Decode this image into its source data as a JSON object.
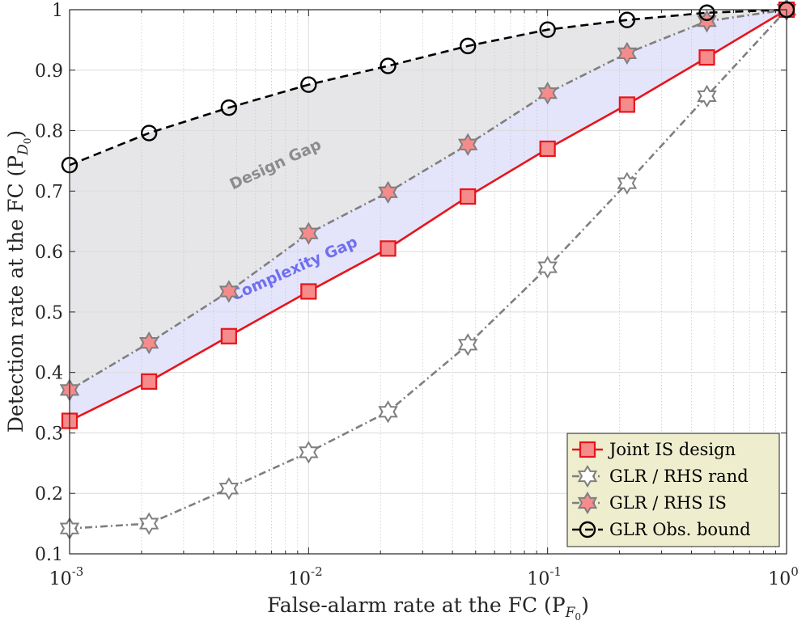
{
  "chart_data": {
    "type": "line",
    "xscale": "log",
    "xlabel": "False-alarm rate at the FC (P",
    "xlabel_sub": "F",
    "xlabel_subsub": "0",
    "xlabel_close": ")",
    "ylabel": "Detection rate at the FC (P",
    "ylabel_sub": "D",
    "ylabel_subsub": "0",
    "ylabel_close": ")",
    "xlim_log10": [
      -3,
      0
    ],
    "ylim": [
      0.1,
      1
    ],
    "x_ticks": [
      {
        "base": "10",
        "exp": "-3",
        "log10": -3
      },
      {
        "base": "10",
        "exp": "-2",
        "log10": -2
      },
      {
        "base": "10",
        "exp": "-1",
        "log10": -1
      },
      {
        "base": "10",
        "exp": "0",
        "log10": 0
      }
    ],
    "y_ticks": [
      "0.1",
      "0.2",
      "0.3",
      "0.4",
      "0.5",
      "0.6",
      "0.7",
      "0.8",
      "0.9",
      "1"
    ],
    "grid": true,
    "legend_position": "bottom-right",
    "x": [
      0.001,
      0.00215,
      0.00464,
      0.01,
      0.0215,
      0.0464,
      0.1,
      0.215,
      0.464,
      1.0
    ],
    "series": [
      {
        "name": "Joint IS design",
        "values": [
          0.32,
          0.385,
          0.46,
          0.534,
          0.605,
          0.691,
          0.77,
          0.843,
          0.921,
          1.0
        ],
        "color": "#e8141b",
        "marker": "square",
        "marker_fill": "#f58b8b",
        "dash": "solid"
      },
      {
        "name": "GLR / RHS rand",
        "values": [
          0.142,
          0.15,
          0.208,
          0.268,
          0.335,
          0.446,
          0.574,
          0.713,
          0.857,
          1.0
        ],
        "color": "#7f7f7f",
        "marker": "hexagram",
        "marker_fill": "#ffffff",
        "dash": "dashdot"
      },
      {
        "name": "GLR / RHS IS",
        "values": [
          0.371,
          0.449,
          0.534,
          0.63,
          0.698,
          0.777,
          0.862,
          0.928,
          0.981,
          1.0
        ],
        "color": "#7f7f7f",
        "marker": "hexagram",
        "marker_fill": "#f58b8b",
        "dash": "dashdot"
      },
      {
        "name": "GLR Obs. bound",
        "values": [
          0.743,
          0.796,
          0.838,
          0.876,
          0.907,
          0.94,
          0.967,
          0.983,
          0.995,
          1.0
        ],
        "color": "#000000",
        "marker": "circle",
        "marker_fill": "none",
        "dash": "dashed"
      }
    ],
    "annotations": [
      {
        "text": "Design Gap",
        "color": "#8c8c8c",
        "region_fill": "#e6e6e8"
      },
      {
        "text": "Complexity Gap",
        "color": "#6f6ff0",
        "region_fill": "#e4e4fb"
      }
    ],
    "legend_bg": "#eeeecf"
  }
}
